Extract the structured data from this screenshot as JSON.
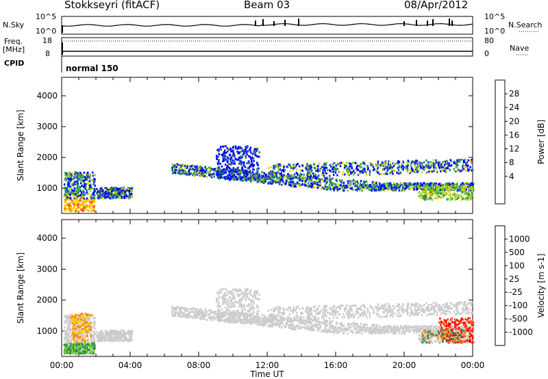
{
  "header": {
    "station": "Stokkseyri (fitACF)",
    "beam": "Beam 03",
    "date": "08/Apr/2012"
  },
  "aux": {
    "nsky_label": "N.Sky",
    "nsky_ticks": [
      "10^5",
      "10^0"
    ],
    "nsearch_label": "N.Search",
    "nsearch_ticks": [
      "10^5",
      "10^0"
    ],
    "freq_label": "Freq.",
    "freq_unit": "[MHz]",
    "freq_ticks": [
      "18",
      "8"
    ],
    "nave_label": "Nave",
    "nave_ticks": [
      "80",
      "0"
    ],
    "cpid_label": "CPID",
    "cpid_value": "normal 150"
  },
  "chart_data": [
    {
      "type": "heatmap",
      "panel": "power",
      "xlabel": "",
      "ylabel": "Slant Range [km]",
      "x_ticks": [
        "00:00",
        "04:00",
        "08:00",
        "12:00",
        "16:00",
        "20:00",
        "00:00"
      ],
      "x_range_hours": [
        0,
        24
      ],
      "y_ticks": [
        1000,
        2000,
        3000,
        4000
      ],
      "ylim": [
        180,
        4600
      ],
      "colorbar": {
        "label": "Power [dB]",
        "ticks": [
          "28",
          "24",
          "20",
          "16",
          "12",
          "8",
          "4"
        ],
        "colors": [
          "#ff0000",
          "#ff5500",
          "#ff9900",
          "#ffcc00",
          "#7fd32a",
          "#2fa84f",
          "#2e8b57",
          "#1f4fa8",
          "#0000ff"
        ]
      },
      "features": [
        {
          "start_hour": 0.1,
          "end_hour": 1.9,
          "range_km": [
            280,
            1550
          ]
        },
        {
          "start_hour": 2.0,
          "end_hour": 4.1,
          "range_km": [
            700,
            1050
          ]
        },
        {
          "start_hour": 6.4,
          "end_hour": 24.0,
          "range_km": [
            950,
            2400
          ]
        },
        {
          "start_hour": 20.8,
          "end_hour": 24.0,
          "range_km": [
            650,
            1100
          ]
        }
      ],
      "grid": false
    },
    {
      "type": "heatmap",
      "panel": "velocity",
      "xlabel": "Time UT",
      "ylabel": "Slant Range [km]",
      "x_ticks": [
        "00:00",
        "04:00",
        "08:00",
        "12:00",
        "16:00",
        "20:00",
        "00:00"
      ],
      "x_range_hours": [
        0,
        24
      ],
      "y_ticks": [
        1000,
        2000,
        3000,
        4000
      ],
      "ylim": [
        180,
        4600
      ],
      "colorbar": {
        "label": "Velocity [m s-1]",
        "ticks": [
          "1000",
          "500",
          "100",
          "25",
          "-25",
          "-100",
          "-500",
          "-1000"
        ],
        "colors": [
          "#1a3fd0",
          "#2a8bd0",
          "#2e8b57",
          "#7fd32a",
          "#cccccc",
          "#ffcc00",
          "#ff8800",
          "#ff4400",
          "#ff0000"
        ]
      },
      "grid": false
    }
  ]
}
